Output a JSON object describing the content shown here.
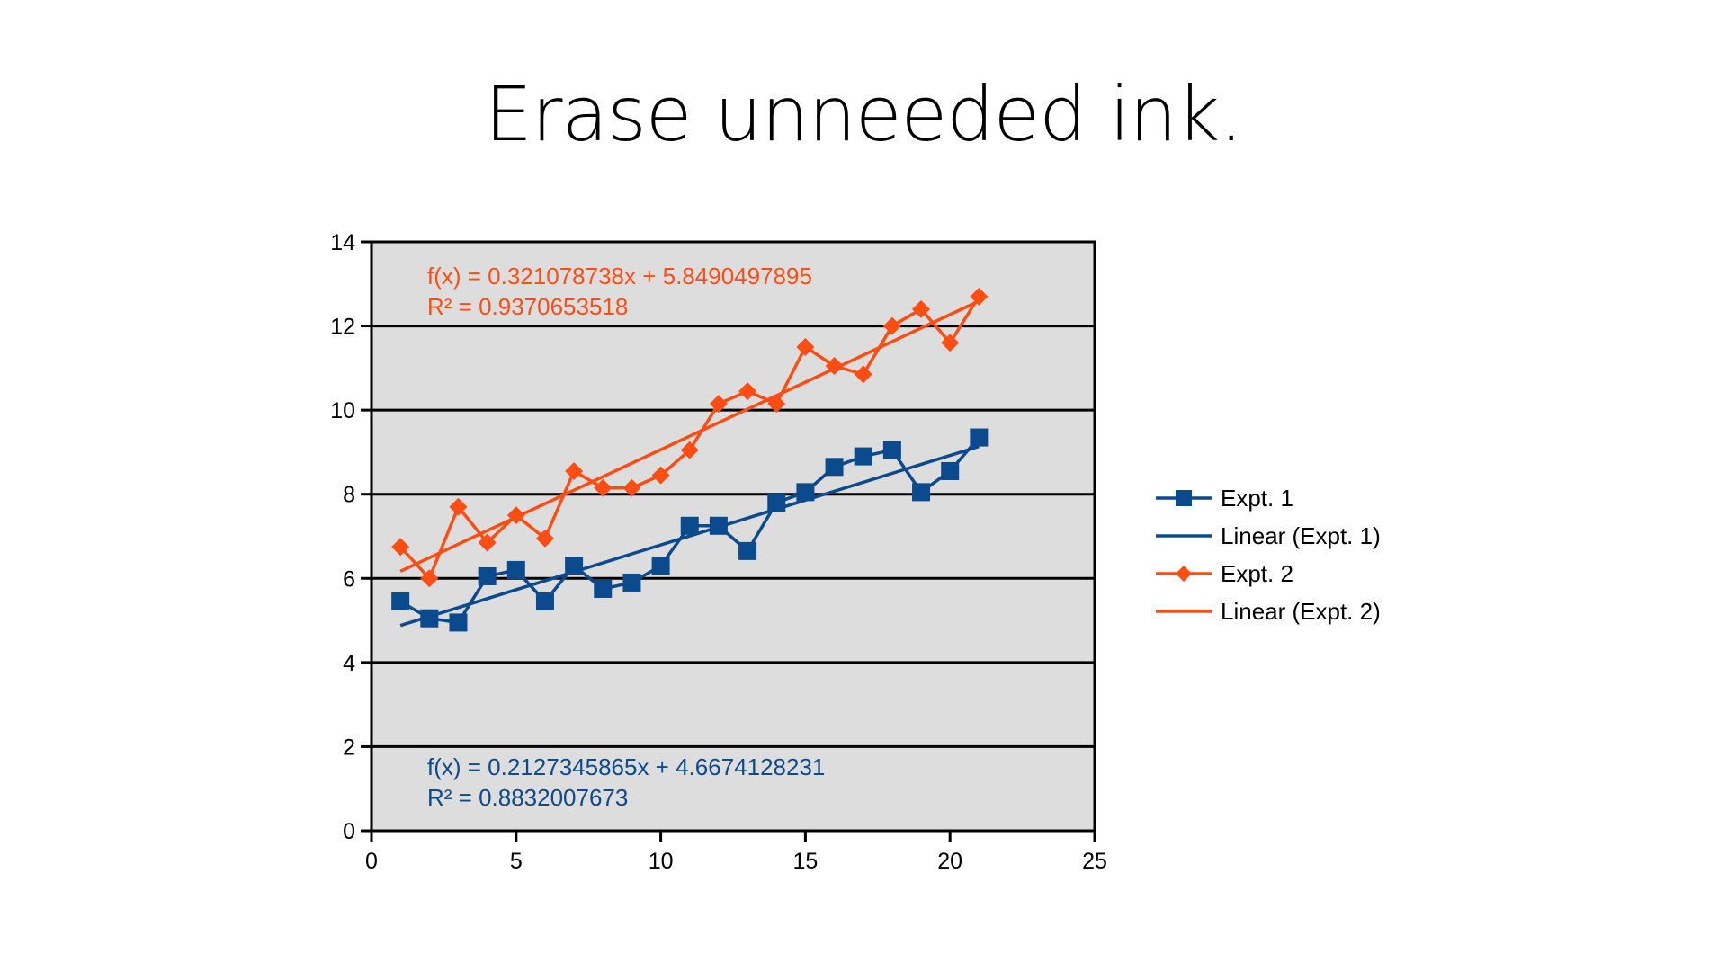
{
  "slide": {
    "title": "Erase unneeded ink."
  },
  "colors": {
    "expt1": "#0b4a8c",
    "expt2": "#ff4d14",
    "plot_background": "#dddddd",
    "gridline": "#000000"
  },
  "chart_data": {
    "type": "scatter",
    "title": "",
    "xlabel": "",
    "ylabel": "",
    "xlim": [
      0,
      25
    ],
    "ylim": [
      0,
      14
    ],
    "x_ticks": [
      "0",
      "5",
      "10",
      "15",
      "20",
      "25"
    ],
    "y_ticks": [
      "0",
      "2",
      "4",
      "6",
      "8",
      "10",
      "12",
      "14"
    ],
    "grid": "horizontal",
    "legend_position": "right",
    "series": [
      {
        "name": "Expt. 1",
        "marker": "square",
        "color": "#0b4a8c",
        "x": [
          1,
          2,
          3,
          4,
          5,
          6,
          7,
          8,
          9,
          10,
          11,
          12,
          13,
          14,
          15,
          16,
          17,
          18,
          19,
          20,
          21
        ],
        "y": [
          5.45,
          5.05,
          4.95,
          6.05,
          6.2,
          5.45,
          6.3,
          5.75,
          5.9,
          6.3,
          7.25,
          7.25,
          6.65,
          7.8,
          8.05,
          8.65,
          8.9,
          9.05,
          8.05,
          8.55,
          9.35
        ]
      },
      {
        "name": "Expt. 2",
        "marker": "diamond",
        "color": "#ff4d14",
        "x": [
          1,
          2,
          3,
          4,
          5,
          6,
          7,
          8,
          9,
          10,
          11,
          12,
          13,
          14,
          15,
          16,
          17,
          18,
          19,
          20,
          21
        ],
        "y": [
          6.75,
          6.0,
          7.7,
          6.85,
          7.5,
          6.95,
          8.55,
          8.15,
          8.15,
          8.45,
          9.05,
          10.15,
          10.45,
          10.15,
          11.5,
          11.05,
          10.85,
          12.0,
          12.4,
          11.6,
          12.7
        ]
      }
    ],
    "trendlines": [
      {
        "name": "Linear (Expt. 1)",
        "color": "#0b4a8c",
        "slope": 0.2127345865,
        "intercept": 4.6674128231,
        "x_range": [
          1,
          21
        ],
        "equation": "f(x) = 0.2127345865x + 4.6674128231",
        "r_squared": "R² = 0.8832007673"
      },
      {
        "name": "Linear (Expt. 2)",
        "color": "#ff4d14",
        "slope": 0.321078738,
        "intercept": 5.8490497895,
        "x_range": [
          1,
          21
        ],
        "equation": "f(x) = 0.321078738x + 5.8490497895",
        "r_squared": "R² = 0.9370653518"
      }
    ],
    "legend": [
      {
        "label": "Expt. 1",
        "color": "#0b4a8c",
        "marker": "square"
      },
      {
        "label": "Linear (Expt. 1)",
        "color": "#0b4a8c",
        "marker": "none"
      },
      {
        "label": "Expt. 2",
        "color": "#ff4d14",
        "marker": "diamond"
      },
      {
        "label": "Linear (Expt. 2)",
        "color": "#ff4d14",
        "marker": "none"
      }
    ]
  }
}
